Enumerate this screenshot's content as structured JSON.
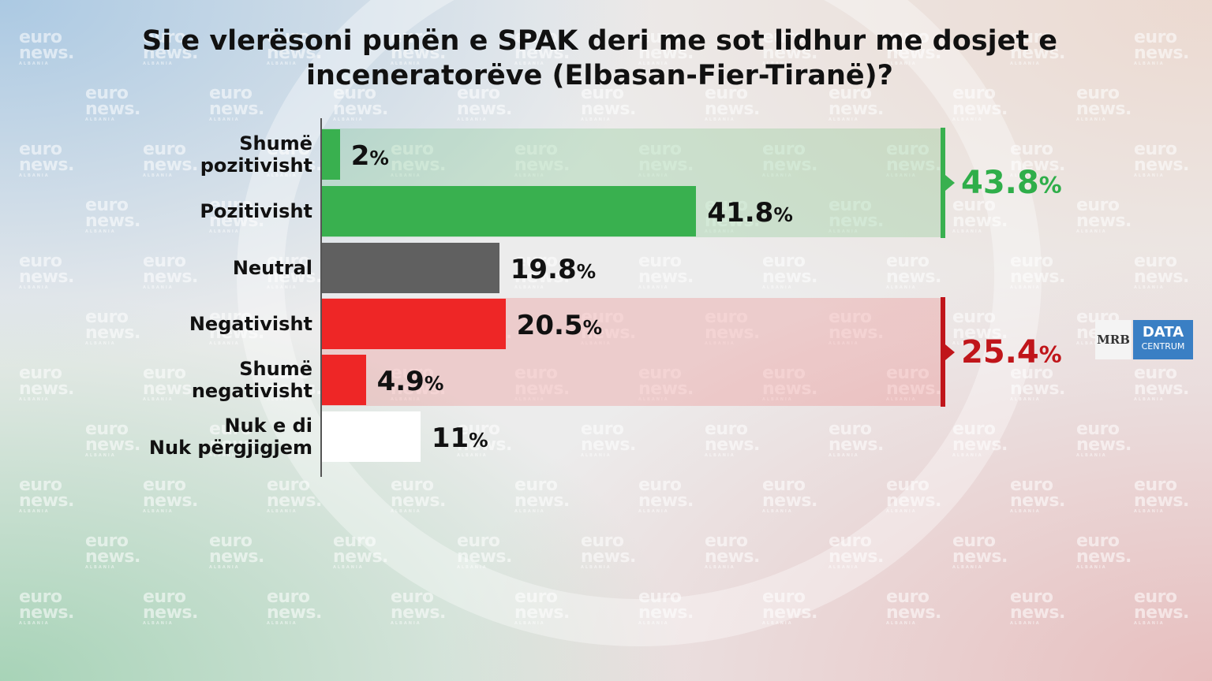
{
  "title": "Si e vlerësoni punën e SPAK deri me sot lidhur me dosjet e inceneratorëve (Elbasan-Fier-Tiranë)?",
  "watermark": {
    "brand": [
      "euro",
      "news."
    ],
    "sub": "ALBANIA"
  },
  "logo": {
    "left": "MRB",
    "right_main": "DATA",
    "right_sub": "CENTRUM"
  },
  "colors": {
    "positive": "#39b04f",
    "neutral": "#606060",
    "negative": "#ee2626",
    "unknown": "#ffffff",
    "positive_band": "rgba(57,176,79,0.18)",
    "negative_band": "rgba(238,38,38,0.16)",
    "positive_total": "#2fae4a",
    "negative_total": "#c0151a"
  },
  "chart_data": {
    "type": "bar",
    "orientation": "horizontal",
    "title": "Si e vlerësoni punën e SPAK deri me sot lidhur me dosjet e inceneratorëve (Elbasan-Fier-Tiranë)?",
    "unit": "%",
    "xlim": [
      0,
      100
    ],
    "grid": false,
    "categories": [
      [
        "Shumë",
        "pozitivisht"
      ],
      [
        "Pozitivisht"
      ],
      [
        "Neutral"
      ],
      [
        "Negativisht"
      ],
      [
        "Shumë",
        "negativisht"
      ],
      [
        "Nuk e di",
        "Nuk përgjigjem"
      ]
    ],
    "values": [
      2,
      41.8,
      19.8,
      20.5,
      4.9,
      11
    ],
    "labels": [
      "2",
      "41.8",
      "19.8",
      "20.5",
      "4.9",
      "11"
    ],
    "bar_colors": [
      "positive",
      "positive",
      "neutral",
      "negative",
      "negative",
      "unknown"
    ],
    "groups": [
      {
        "name": "positive",
        "from": 0,
        "to": 1,
        "total": 43.8,
        "label": "43.8"
      },
      {
        "name": "negative",
        "from": 3,
        "to": 4,
        "total": 25.4,
        "label": "25.4"
      }
    ]
  }
}
